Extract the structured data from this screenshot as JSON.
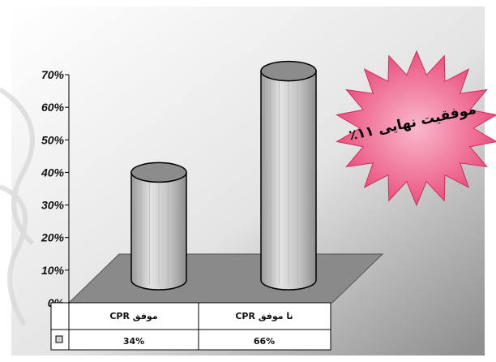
{
  "chart_data": {
    "type": "bar",
    "categories": [
      "موفق CPR",
      "نا موفق CPR"
    ],
    "values": [
      34,
      66
    ],
    "value_labels": [
      "34%",
      "66%"
    ],
    "ylim": [
      0,
      70
    ],
    "yticks": [
      "0%",
      "10%",
      "20%",
      "30%",
      "40%",
      "50%",
      "60%",
      "70%"
    ],
    "legend": "data table below plot",
    "colors": {
      "bar": "#c8c8c8",
      "floor": "#8a8a8a",
      "burst": "#e8507a"
    }
  },
  "callout": {
    "line1": "موفقیت نهایی ۱۱٪"
  }
}
